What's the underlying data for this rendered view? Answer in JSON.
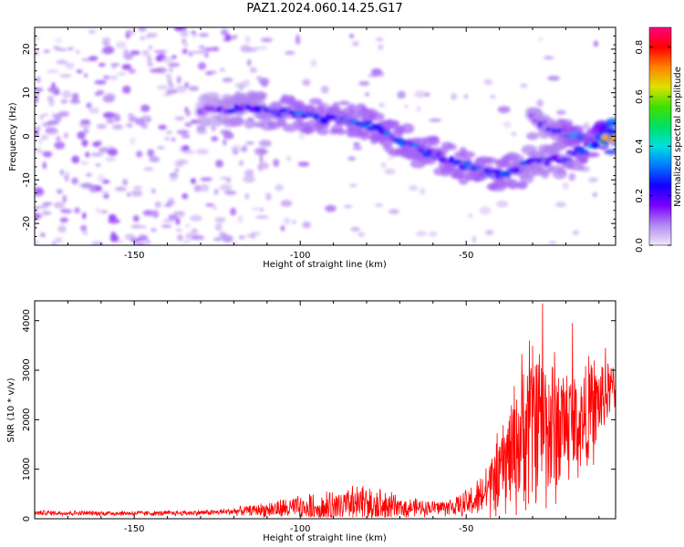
{
  "title": "PAZ1.2024.060.14.25.G17",
  "chart_data": [
    {
      "type": "heatmap",
      "xlabel": "Height of straight line (km)",
      "ylabel": "Frequency (Hz)",
      "xlim": [
        -180,
        -5
      ],
      "ylim": [
        -25,
        25
      ],
      "xticks": [
        -150,
        -100,
        -50
      ],
      "yticks": [
        -20,
        -10,
        0,
        10,
        20
      ],
      "colorbar": {
        "label": "Normalized spectral amplitude",
        "range": [
          0,
          0.88
        ],
        "ticks": [
          0.0,
          0.2,
          0.4,
          0.6,
          0.8
        ],
        "colormap": [
          "#f0e6fa",
          "#b48cf0",
          "#7a00ff",
          "#1400ff",
          "#0078ff",
          "#00e0e0",
          "#00e060",
          "#40e000",
          "#e0e000",
          "#ff8000",
          "#ff0000",
          "#ff0080"
        ]
      },
      "ridge": {
        "x": [
          -130,
          -120,
          -110,
          -100,
          -90,
          -80,
          -70,
          -60,
          -50,
          -40,
          -30,
          -20,
          -10,
          -5
        ],
        "freq": [
          6,
          6.5,
          6,
          5,
          4,
          3,
          -1,
          -4,
          -7,
          -9,
          -6,
          -5,
          -1,
          0
        ],
        "amplitude": [
          0.15,
          0.25,
          0.25,
          0.3,
          0.3,
          0.3,
          0.3,
          0.3,
          0.3,
          0.3,
          0.25,
          0.25,
          0.4,
          0.88
        ]
      },
      "ridge2": {
        "x": [
          -30,
          -25,
          -20,
          -15
        ],
        "freq": [
          4,
          2,
          1,
          -1
        ],
        "amplitude": [
          0.2,
          0.25,
          0.3,
          0.35
        ]
      }
    },
    {
      "type": "line",
      "xlabel": "Height of straight line (km)",
      "ylabel": "SNR (10 * v/v)",
      "xlim": [
        -180,
        -5
      ],
      "ylim": [
        0,
        4400
      ],
      "xticks": [
        -150,
        -100,
        -50
      ],
      "yticks": [
        0,
        1000,
        2000,
        3000,
        4000
      ],
      "color": "#ff0000",
      "envelope": {
        "x": [
          -180,
          -160,
          -140,
          -125,
          -115,
          -105,
          -95,
          -85,
          -78,
          -70,
          -60,
          -52,
          -46,
          -40,
          -36,
          -32,
          -28,
          -24,
          -20,
          -16,
          -12,
          -8,
          -5
        ],
        "base": [
          120,
          110,
          110,
          130,
          170,
          200,
          220,
          240,
          260,
          220,
          220,
          250,
          400,
          900,
          1400,
          1800,
          2200,
          1800,
          2000,
          1900,
          2200,
          2500,
          2700
        ],
        "spread": [
          60,
          60,
          60,
          70,
          120,
          250,
          350,
          450,
          550,
          250,
          180,
          250,
          500,
          1000,
          1500,
          2000,
          2100,
          2000,
          1500,
          1300,
          1300,
          800,
          500
        ],
        "peak": [
          {
            "x": -27,
            "y": 4350
          },
          {
            "x": -18,
            "y": 3950
          },
          {
            "x": -31,
            "y": 3600
          },
          {
            "x": -8,
            "y": 3450
          }
        ]
      }
    }
  ]
}
